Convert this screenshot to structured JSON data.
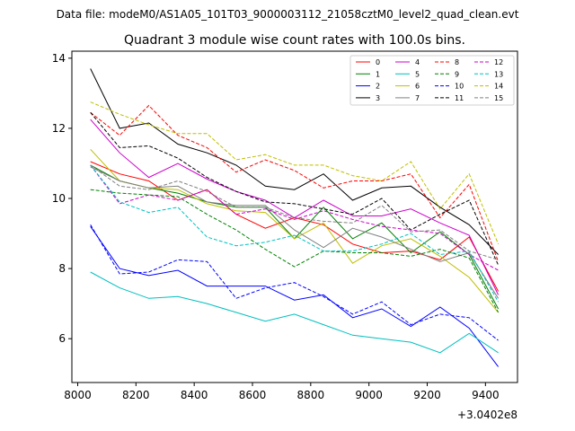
{
  "chart_data": {
    "type": "line",
    "suptitle": "Data file: modeM0/AS1A05_101T03_9000003112_21058cztM0_level2_quad_clean.evt",
    "title": "Quadrant 3 module wise count rates with 100.0s bins.",
    "xlabel": "",
    "ylabel": "",
    "x_offset_label": "+3.0402e8",
    "xlim": [
      7980,
      9510
    ],
    "ylim": [
      4.75,
      14.2
    ],
    "xticks": [
      8000,
      8200,
      8400,
      8600,
      8800,
      9000,
      9200,
      9400
    ],
    "yticks": [
      6,
      8,
      10,
      12,
      14
    ],
    "legend_position": "upper right",
    "x": [
      8044,
      8144,
      8244,
      8344,
      8444,
      8544,
      8644,
      8744,
      8844,
      8944,
      9044,
      9144,
      9244,
      9344,
      9444
    ],
    "series": [
      {
        "name": "0",
        "color": "#ff0000",
        "dash": "solid",
        "values": [
          11.05,
          10.7,
          10.5,
          9.95,
          10.25,
          9.55,
          9.15,
          9.45,
          9.25,
          8.7,
          8.45,
          8.5,
          8.25,
          8.9,
          7.35
        ]
      },
      {
        "name": "1",
        "color": "#008000",
        "dash": "solid",
        "values": [
          10.95,
          10.5,
          10.3,
          10.15,
          9.9,
          9.75,
          9.75,
          8.85,
          9.75,
          8.85,
          9.3,
          8.45,
          9.05,
          8.4,
          6.85
        ]
      },
      {
        "name": "2",
        "color": "#0000ff",
        "dash": "solid",
        "values": [
          9.2,
          8.0,
          7.8,
          7.95,
          7.5,
          7.5,
          7.5,
          7.1,
          7.25,
          6.6,
          6.85,
          6.35,
          6.9,
          6.3,
          5.2
        ]
      },
      {
        "name": "3",
        "color": "#000000",
        "dash": "solid",
        "values": [
          13.7,
          12.0,
          12.15,
          11.55,
          11.3,
          10.95,
          10.35,
          10.25,
          10.7,
          9.95,
          10.3,
          10.35,
          9.75,
          9.25,
          8.4
        ]
      },
      {
        "name": "4",
        "color": "#cc00cc",
        "dash": "solid",
        "values": [
          12.25,
          11.3,
          10.6,
          11.0,
          10.55,
          10.2,
          9.95,
          9.45,
          9.95,
          9.5,
          9.5,
          9.7,
          9.3,
          8.95,
          7.25
        ]
      },
      {
        "name": "5",
        "color": "#00bfbf",
        "dash": "solid",
        "values": [
          7.9,
          7.45,
          7.15,
          7.2,
          7.0,
          6.75,
          6.5,
          6.7,
          6.4,
          6.1,
          6.0,
          5.9,
          5.6,
          6.15,
          5.6
        ]
      },
      {
        "name": "6",
        "color": "#bfbf00",
        "dash": "solid",
        "values": [
          11.4,
          10.5,
          10.3,
          10.25,
          9.85,
          9.65,
          9.6,
          8.85,
          9.3,
          8.15,
          8.65,
          8.85,
          8.35,
          7.75,
          6.75
        ]
      },
      {
        "name": "7",
        "color": "#808080",
        "dash": "solid",
        "values": [
          10.9,
          10.5,
          10.3,
          10.35,
          9.9,
          9.8,
          9.8,
          9.1,
          8.6,
          9.15,
          8.9,
          8.55,
          8.2,
          8.45,
          7.15
        ]
      },
      {
        "name": "8",
        "color": "#ff0000",
        "dash": "dashed",
        "values": [
          12.45,
          11.8,
          12.65,
          11.8,
          11.45,
          10.75,
          11.1,
          10.8,
          10.3,
          10.5,
          10.5,
          10.7,
          9.45,
          10.4,
          8.2
        ]
      },
      {
        "name": "9",
        "color": "#008000",
        "dash": "dashed",
        "values": [
          10.25,
          10.15,
          10.1,
          10.05,
          9.55,
          9.1,
          8.55,
          8.05,
          8.5,
          8.45,
          8.45,
          8.35,
          8.55,
          8.3,
          6.75
        ]
      },
      {
        "name": "10",
        "color": "#0000ff",
        "dash": "dashed",
        "values": [
          9.25,
          7.85,
          7.9,
          8.25,
          8.2,
          7.15,
          7.45,
          7.6,
          7.2,
          6.7,
          7.05,
          6.4,
          6.7,
          6.6,
          5.95
        ]
      },
      {
        "name": "11",
        "color": "#000000",
        "dash": "dashed",
        "values": [
          12.45,
          11.45,
          11.5,
          11.15,
          10.6,
          10.2,
          9.9,
          9.85,
          9.7,
          9.55,
          10.0,
          9.1,
          9.55,
          9.95,
          8.1
        ]
      },
      {
        "name": "12",
        "color": "#cc00cc",
        "dash": "dashed",
        "values": [
          10.95,
          9.85,
          10.1,
          9.95,
          10.25,
          9.55,
          9.7,
          9.4,
          9.65,
          9.4,
          9.2,
          9.1,
          9.0,
          8.4,
          7.95
        ]
      },
      {
        "name": "13",
        "color": "#00bfbf",
        "dash": "dashed",
        "values": [
          10.95,
          9.9,
          9.6,
          9.75,
          8.9,
          8.65,
          8.75,
          8.95,
          8.5,
          8.5,
          8.7,
          9.0,
          8.4,
          8.5,
          7.05
        ]
      },
      {
        "name": "14",
        "color": "#bfbf00",
        "dash": "dashed",
        "values": [
          12.75,
          12.4,
          12.1,
          11.85,
          11.85,
          11.1,
          11.25,
          10.95,
          10.95,
          10.65,
          10.5,
          11.05,
          9.7,
          10.7,
          8.7
        ]
      },
      {
        "name": "15",
        "color": "#808080",
        "dash": "dashed",
        "values": [
          10.95,
          10.35,
          10.25,
          10.5,
          10.2,
          9.75,
          9.75,
          9.45,
          9.35,
          9.3,
          9.8,
          9.05,
          9.1,
          8.5,
          8.25
        ]
      }
    ]
  }
}
